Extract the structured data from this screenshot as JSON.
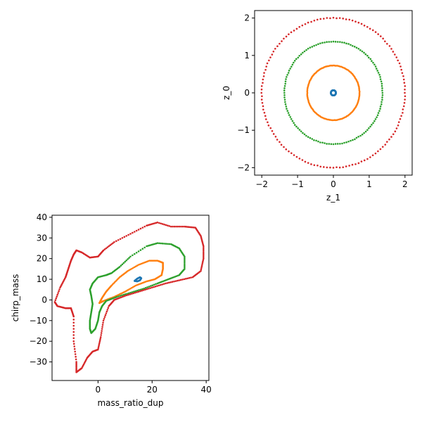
{
  "chart_data": [
    {
      "type": "scatter",
      "subplot": "top-right",
      "title": "",
      "xlabel": "z_1",
      "ylabel": "z_0",
      "xlim": [
        -2.2,
        2.2
      ],
      "ylim": [
        -2.2,
        2.2
      ],
      "x_ticks": [
        -2,
        -1,
        0,
        1,
        2
      ],
      "y_ticks": [
        -2,
        -1,
        0,
        1,
        2
      ],
      "x_tick_labels": [
        "−2",
        "−1",
        "0",
        "1",
        "2"
      ],
      "y_tick_labels": [
        "−2",
        "−1",
        "0",
        "1",
        "2"
      ],
      "grid": false,
      "series": [
        {
          "color": "#1f77b4",
          "shape": "circle",
          "center": [
            0,
            0
          ],
          "radius": 0.07
        },
        {
          "color": "#ff7f0e",
          "shape": "circle",
          "center": [
            0,
            0
          ],
          "radius": 0.73
        },
        {
          "color": "#2ca02c",
          "shape": "circle",
          "center": [
            0,
            0
          ],
          "radius": 1.37
        },
        {
          "color": "#d62728",
          "shape": "circle",
          "center": [
            0,
            0
          ],
          "radius": 2.0
        }
      ]
    },
    {
      "type": "scatter",
      "subplot": "bottom-left",
      "title": "",
      "xlabel": "mass_ratio_dup",
      "ylabel": "chirp_mass",
      "xlim": [
        -17,
        41
      ],
      "ylim": [
        -39,
        41
      ],
      "x_ticks": [
        0,
        20,
        40
      ],
      "y_ticks": [
        -30,
        -20,
        -10,
        0,
        10,
        20,
        30,
        40
      ],
      "x_tick_labels": [
        "0",
        "20",
        "40"
      ],
      "y_tick_labels": [
        "−30",
        "−20",
        "−10",
        "0",
        "10",
        "20",
        "30",
        "40"
      ],
      "grid": false,
      "series": [
        {
          "color": "#1f77b4",
          "points": [
            [
              13.5,
              9.2
            ],
            [
              14.5,
              10.3
            ],
            [
              15.5,
              11.0
            ],
            [
              16.0,
              10.5
            ],
            [
              15.5,
              9.5
            ],
            [
              14.5,
              9.0
            ],
            [
              13.5,
              9.2
            ]
          ]
        },
        {
          "color": "#ff7f0e",
          "points": [
            [
              0.5,
              -1.5
            ],
            [
              2,
              -0.5
            ],
            [
              6,
              1.5
            ],
            [
              10,
              4
            ],
            [
              14,
              7
            ],
            [
              18,
              9
            ],
            [
              21,
              10
            ],
            [
              23.5,
              12
            ],
            [
              24,
              15
            ],
            [
              24,
              18
            ],
            [
              22,
              19
            ],
            [
              19,
              19
            ],
            [
              15,
              17
            ],
            [
              11,
              14
            ],
            [
              8,
              11
            ],
            [
              5,
              7
            ],
            [
              3,
              4
            ],
            [
              1.5,
              1
            ],
            [
              0.5,
              -1.5
            ]
          ]
        },
        {
          "color": "#2ca02c",
          "points": [
            [
              -2.5,
              -16
            ],
            [
              -1,
              -14
            ],
            [
              0,
              -10
            ],
            [
              0.5,
              -6
            ],
            [
              1.5,
              -3
            ],
            [
              3,
              -0.5
            ],
            [
              7,
              1.5
            ],
            [
              12,
              3.5
            ],
            [
              17,
              5.5
            ],
            [
              22,
              8
            ],
            [
              26,
              10
            ],
            [
              30,
              12
            ],
            [
              32,
              15
            ],
            [
              32,
              21
            ],
            [
              30,
              25
            ],
            [
              27,
              27
            ],
            [
              22,
              27.5
            ],
            [
              18,
              26
            ],
            [
              12,
              21
            ],
            [
              8,
              16
            ],
            [
              5,
              13
            ],
            [
              3,
              12
            ],
            [
              0,
              11
            ],
            [
              -2,
              8
            ],
            [
              -3,
              5
            ],
            [
              -2.5,
              2
            ],
            [
              -2,
              -2
            ],
            [
              -2.5,
              -6
            ],
            [
              -3,
              -10
            ],
            [
              -3,
              -14
            ],
            [
              -2.5,
              -16
            ]
          ]
        },
        {
          "color": "#d62728",
          "points": [
            [
              -8,
              -35
            ],
            [
              -6,
              -33
            ],
            [
              -4,
              -28
            ],
            [
              -2,
              -25
            ],
            [
              0,
              -24
            ],
            [
              1,
              -18
            ],
            [
              2,
              -10
            ],
            [
              4,
              -3
            ],
            [
              6,
              0
            ],
            [
              10,
              2
            ],
            [
              15,
              4
            ],
            [
              20,
              6
            ],
            [
              25,
              8
            ],
            [
              30,
              9.5
            ],
            [
              35,
              11
            ],
            [
              38,
              14
            ],
            [
              39,
              20
            ],
            [
              39,
              26
            ],
            [
              38,
              31
            ],
            [
              36,
              35
            ],
            [
              32,
              35.5
            ],
            [
              27,
              35.5
            ],
            [
              22,
              37.5
            ],
            [
              18,
              36
            ],
            [
              12,
              32
            ],
            [
              6,
              28
            ],
            [
              2,
              24
            ],
            [
              0,
              21
            ],
            [
              -3,
              20.5
            ],
            [
              -6,
              23
            ],
            [
              -8,
              24
            ],
            [
              -9,
              22
            ],
            [
              -10,
              19
            ],
            [
              -11,
              15
            ],
            [
              -12,
              11
            ],
            [
              -14,
              6
            ],
            [
              -16,
              -1
            ],
            [
              -15,
              -3
            ],
            [
              -12,
              -4
            ],
            [
              -10,
              -4
            ],
            [
              -9,
              -8
            ],
            [
              -9,
              -20
            ],
            [
              -8,
              -30
            ],
            [
              -8,
              -35
            ]
          ]
        }
      ]
    }
  ]
}
